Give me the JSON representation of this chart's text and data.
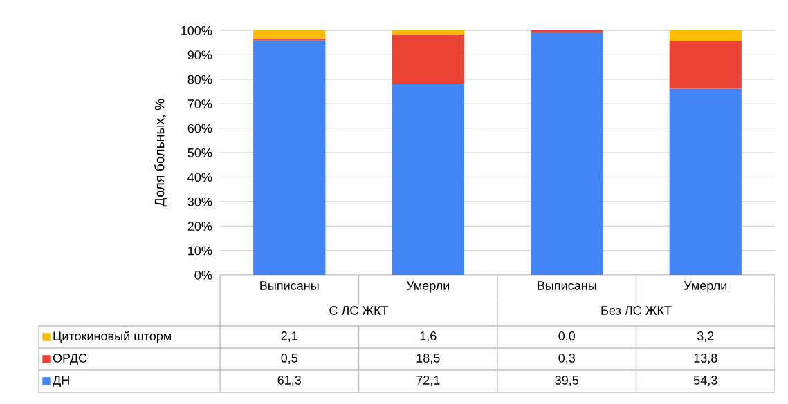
{
  "chart_data": {
    "type": "bar",
    "stacked": true,
    "ylabel": "Доля больных, %",
    "categories": [
      "Выписаны",
      "Умерли",
      "Выписаны",
      "Умерли"
    ],
    "annotations": [
      "С ЛС ЖКТ",
      "Без ЛС ЖКТ",
      "2,1",
      "1,6",
      "0,0",
      "3,2",
      "0,5",
      "18,5",
      "0,3",
      "13,8",
      "61,3",
      "72,1",
      "39,5",
      "54,3"
    ],
    "legend": "bottom left",
    "series": [
      {
        "name": "ДН",
        "color": "#4285f4",
        "values": [
          95.9,
          78.2,
          99.2,
          76.1
        ]
      },
      {
        "name": "ОРДС",
        "color": "#ea4335",
        "values": [
          0.8,
          20.1,
          0.8,
          19.4
        ]
      },
      {
        "name": "Цитокиновый шторм",
        "color": "#fbbc04",
        "values": [
          3.3,
          1.7,
          0.0,
          4.5
        ]
      }
    ],
    "ylim": [
      0,
      100
    ],
    "yticks": [
      {
        "value": 0,
        "label": "0%"
      },
      {
        "value": 10,
        "label": "10%"
      },
      {
        "value": 20,
        "label": "20%"
      },
      {
        "value": 30,
        "label": "30%"
      },
      {
        "value": 40,
        "label": "40%"
      },
      {
        "value": 50,
        "label": "50%"
      },
      {
        "value": 60,
        "label": "60%"
      },
      {
        "value": 70,
        "label": "70%"
      },
      {
        "value": 80,
        "label": "80%"
      },
      {
        "value": 90,
        "label": "90%"
      },
      {
        "value": 100,
        "label": "100%"
      }
    ],
    "grid": "y"
  }
}
